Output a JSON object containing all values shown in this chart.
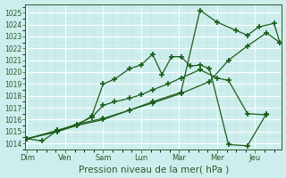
{
  "xlabel": "Pression niveau de la mer( hPa )",
  "background_color": "#ceeeed",
  "grid_color": "#aadddd",
  "line_color": "#1a5e1a",
  "ylim": [
    1013.5,
    1025.7
  ],
  "yticks": [
    1014,
    1015,
    1016,
    1017,
    1018,
    1019,
    1020,
    1021,
    1022,
    1023,
    1024,
    1025
  ],
  "day_labels": [
    "Dim",
    "Ven",
    "Sam",
    "Lun",
    "Mar",
    "Mer",
    "Jeu"
  ],
  "day_positions": [
    0,
    1,
    2,
    3,
    4,
    5,
    6
  ],
  "xlim": [
    -0.05,
    6.7
  ],
  "series": [
    {
      "x": [
        0,
        0.4,
        0.8,
        1.3,
        1.7,
        2.0,
        2.3,
        2.7,
        3.0,
        3.3,
        3.55,
        3.8,
        4.05,
        4.3,
        4.55,
        4.8,
        5.3,
        5.8,
        6.3
      ],
      "y": [
        1014.4,
        1014.2,
        1015.1,
        1015.5,
        1016.3,
        1019.0,
        1019.4,
        1020.3,
        1020.6,
        1021.5,
        1019.8,
        1021.3,
        1021.3,
        1020.5,
        1020.6,
        1020.3,
        1013.9,
        1013.8,
        1016.5
      ]
    },
    {
      "x": [
        0,
        0.8,
        1.3,
        1.7,
        2.0,
        2.3,
        2.7,
        3.0,
        3.3,
        3.7,
        4.05,
        4.55,
        5.0,
        5.3,
        5.8,
        6.3
      ],
      "y": [
        1014.4,
        1015.1,
        1015.6,
        1016.2,
        1017.2,
        1017.5,
        1017.8,
        1018.1,
        1018.5,
        1019.0,
        1019.5,
        1020.2,
        1019.5,
        1019.3,
        1016.5,
        1016.4
      ]
    },
    {
      "x": [
        0,
        0.8,
        1.3,
        2.0,
        2.7,
        3.3,
        4.05,
        4.8,
        5.3,
        5.8,
        6.3,
        6.65
      ],
      "y": [
        1014.4,
        1015.0,
        1015.5,
        1016.0,
        1016.8,
        1017.4,
        1018.2,
        1019.2,
        1021.0,
        1022.2,
        1023.3,
        1022.5
      ]
    },
    {
      "x": [
        0,
        0.8,
        1.3,
        2.0,
        2.7,
        3.3,
        4.05,
        4.55,
        5.0,
        5.5,
        5.8,
        6.1,
        6.5,
        6.65
      ],
      "y": [
        1014.4,
        1015.0,
        1015.6,
        1016.1,
        1016.8,
        1017.5,
        1018.3,
        1025.2,
        1024.2,
        1023.5,
        1023.1,
        1023.8,
        1024.1,
        1022.5
      ]
    }
  ]
}
